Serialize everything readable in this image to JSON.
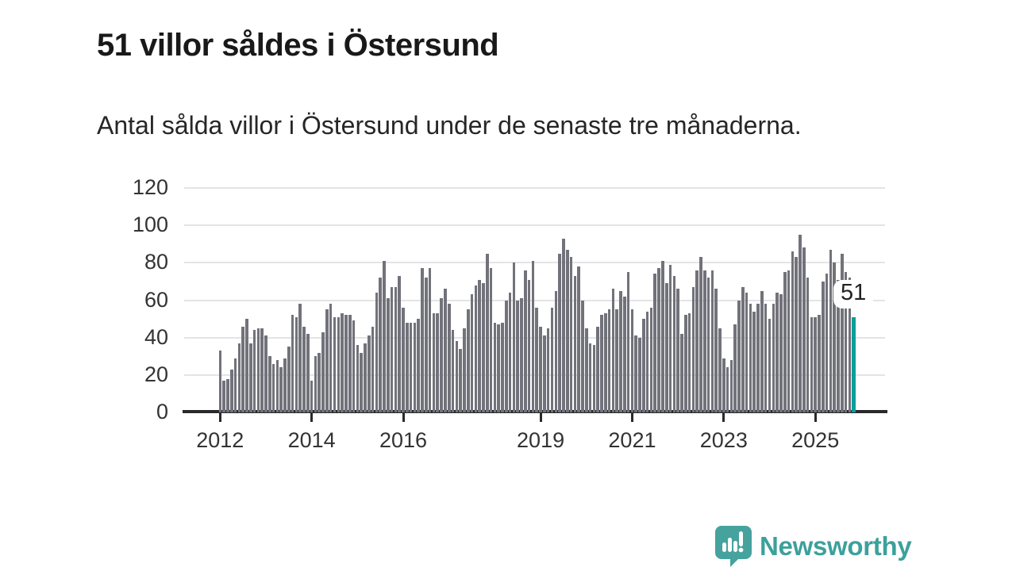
{
  "header": {
    "title": "51 villor såldes i Östersund",
    "subtitle": "Antal sålda villor i Östersund under de senaste tre månaderna."
  },
  "chart_data": {
    "type": "bar",
    "title": "51 villor såldes i Östersund",
    "xlabel": "",
    "ylabel": "Antal sålda villor",
    "x_interval": "month",
    "x_start": {
      "year": 2012,
      "month": 1
    },
    "values": [
      33,
      17,
      18,
      23,
      29,
      37,
      46,
      50,
      37,
      44,
      45,
      45,
      41,
      30,
      26,
      28,
      24,
      29,
      35,
      52,
      51,
      58,
      46,
      42,
      17,
      30,
      32,
      43,
      55,
      58,
      51,
      51,
      53,
      52,
      52,
      49,
      36,
      32,
      37,
      41,
      46,
      64,
      72,
      81,
      61,
      67,
      67,
      73,
      56,
      48,
      48,
      48,
      50,
      77,
      72,
      77,
      53,
      53,
      61,
      66,
      58,
      44,
      38,
      34,
      45,
      55,
      63,
      68,
      71,
      69,
      85,
      77,
      48,
      47,
      48,
      60,
      64,
      80,
      60,
      61,
      76,
      71,
      81,
      56,
      46,
      41,
      45,
      56,
      65,
      85,
      93,
      87,
      83,
      73,
      78,
      60,
      45,
      37,
      36,
      46,
      52,
      53,
      55,
      66,
      55,
      65,
      62,
      75,
      55,
      41,
      40,
      50,
      54,
      56,
      74,
      77,
      81,
      69,
      79,
      73,
      66,
      42,
      52,
      53,
      67,
      76,
      83,
      76,
      72,
      76,
      66,
      45,
      29,
      24,
      28,
      47,
      60,
      67,
      64,
      58,
      54,
      58,
      65,
      58,
      50,
      58,
      64,
      63,
      75,
      76,
      86,
      83,
      95,
      88,
      72,
      51,
      51,
      52,
      70,
      74,
      87,
      80,
      71,
      85,
      75,
      72,
      51
    ],
    "highlight": {
      "index": 166,
      "value": 51,
      "label": "51",
      "color": "#0a9e9b"
    },
    "yticks": [
      0,
      20,
      40,
      60,
      80,
      100,
      120
    ],
    "ylim": [
      0,
      120
    ],
    "year_ticks": [
      "2012",
      "2014",
      "2016",
      "2019",
      "2021",
      "2023",
      "2025"
    ],
    "grid": true,
    "legend": "none",
    "colors": {
      "bar": "#72727b",
      "highlight": "#0a9e9b",
      "grid": "#e4e4e6",
      "axis": "#29292b"
    }
  },
  "footer": {
    "brand": "Newsworthy"
  }
}
